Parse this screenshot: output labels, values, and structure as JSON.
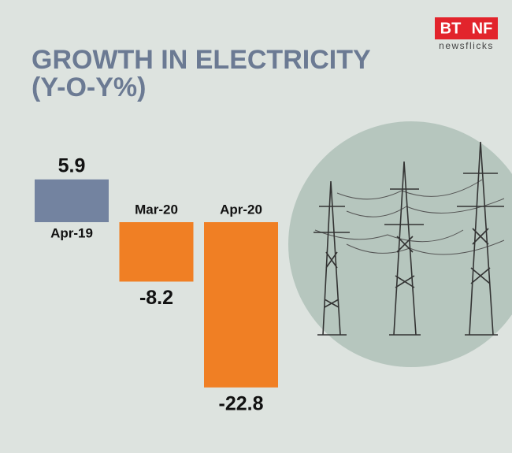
{
  "logo": {
    "left": "BT",
    "right": "NF",
    "tagline": "newsflicks"
  },
  "chart_data": {
    "type": "bar",
    "title": "GROWTH IN ELECTRICITY",
    "subtitle": "(Y-O-Y%)",
    "categories": [
      "Apr-19",
      "Mar-20",
      "Apr-20"
    ],
    "values": [
      5.9,
      -8.2,
      -22.8
    ],
    "colors": [
      "#7383a0",
      "#f07f24",
      "#f07f24"
    ]
  }
}
